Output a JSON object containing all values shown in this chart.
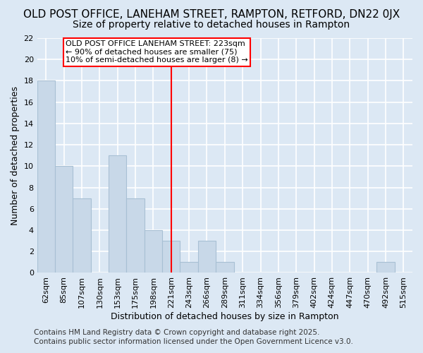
{
  "title": "OLD POST OFFICE, LANEHAM STREET, RAMPTON, RETFORD, DN22 0JX",
  "subtitle": "Size of property relative to detached houses in Rampton",
  "xlabel": "Distribution of detached houses by size in Rampton",
  "ylabel": "Number of detached properties",
  "bar_labels": [
    "62sqm",
    "85sqm",
    "107sqm",
    "130sqm",
    "153sqm",
    "175sqm",
    "198sqm",
    "221sqm",
    "243sqm",
    "266sqm",
    "289sqm",
    "311sqm",
    "334sqm",
    "356sqm",
    "379sqm",
    "402sqm",
    "424sqm",
    "447sqm",
    "470sqm",
    "492sqm",
    "515sqm"
  ],
  "bar_values": [
    18,
    10,
    7,
    0,
    11,
    7,
    4,
    3,
    1,
    3,
    1,
    0,
    0,
    0,
    0,
    0,
    0,
    0,
    0,
    1,
    0
  ],
  "bar_color": "#c8d8e8",
  "bar_edge_color": "#a8c0d4",
  "vline_x_index": 7,
  "vline_color": "red",
  "annotation_text": "OLD POST OFFICE LANEHAM STREET: 223sqm\n← 90% of detached houses are smaller (75)\n10% of semi-detached houses are larger (8) →",
  "annotation_box_color": "white",
  "annotation_box_edge": "red",
  "ylim": [
    0,
    22
  ],
  "yticks": [
    0,
    2,
    4,
    6,
    8,
    10,
    12,
    14,
    16,
    18,
    20,
    22
  ],
  "footer1": "Contains HM Land Registry data © Crown copyright and database right 2025.",
  "footer2": "Contains public sector information licensed under the Open Government Licence v3.0.",
  "bg_color": "#dce8f4",
  "grid_color": "white",
  "title_fontsize": 11,
  "subtitle_fontsize": 10,
  "axis_label_fontsize": 9,
  "tick_fontsize": 8,
  "footer_fontsize": 7.5,
  "annotation_fontsize": 8
}
